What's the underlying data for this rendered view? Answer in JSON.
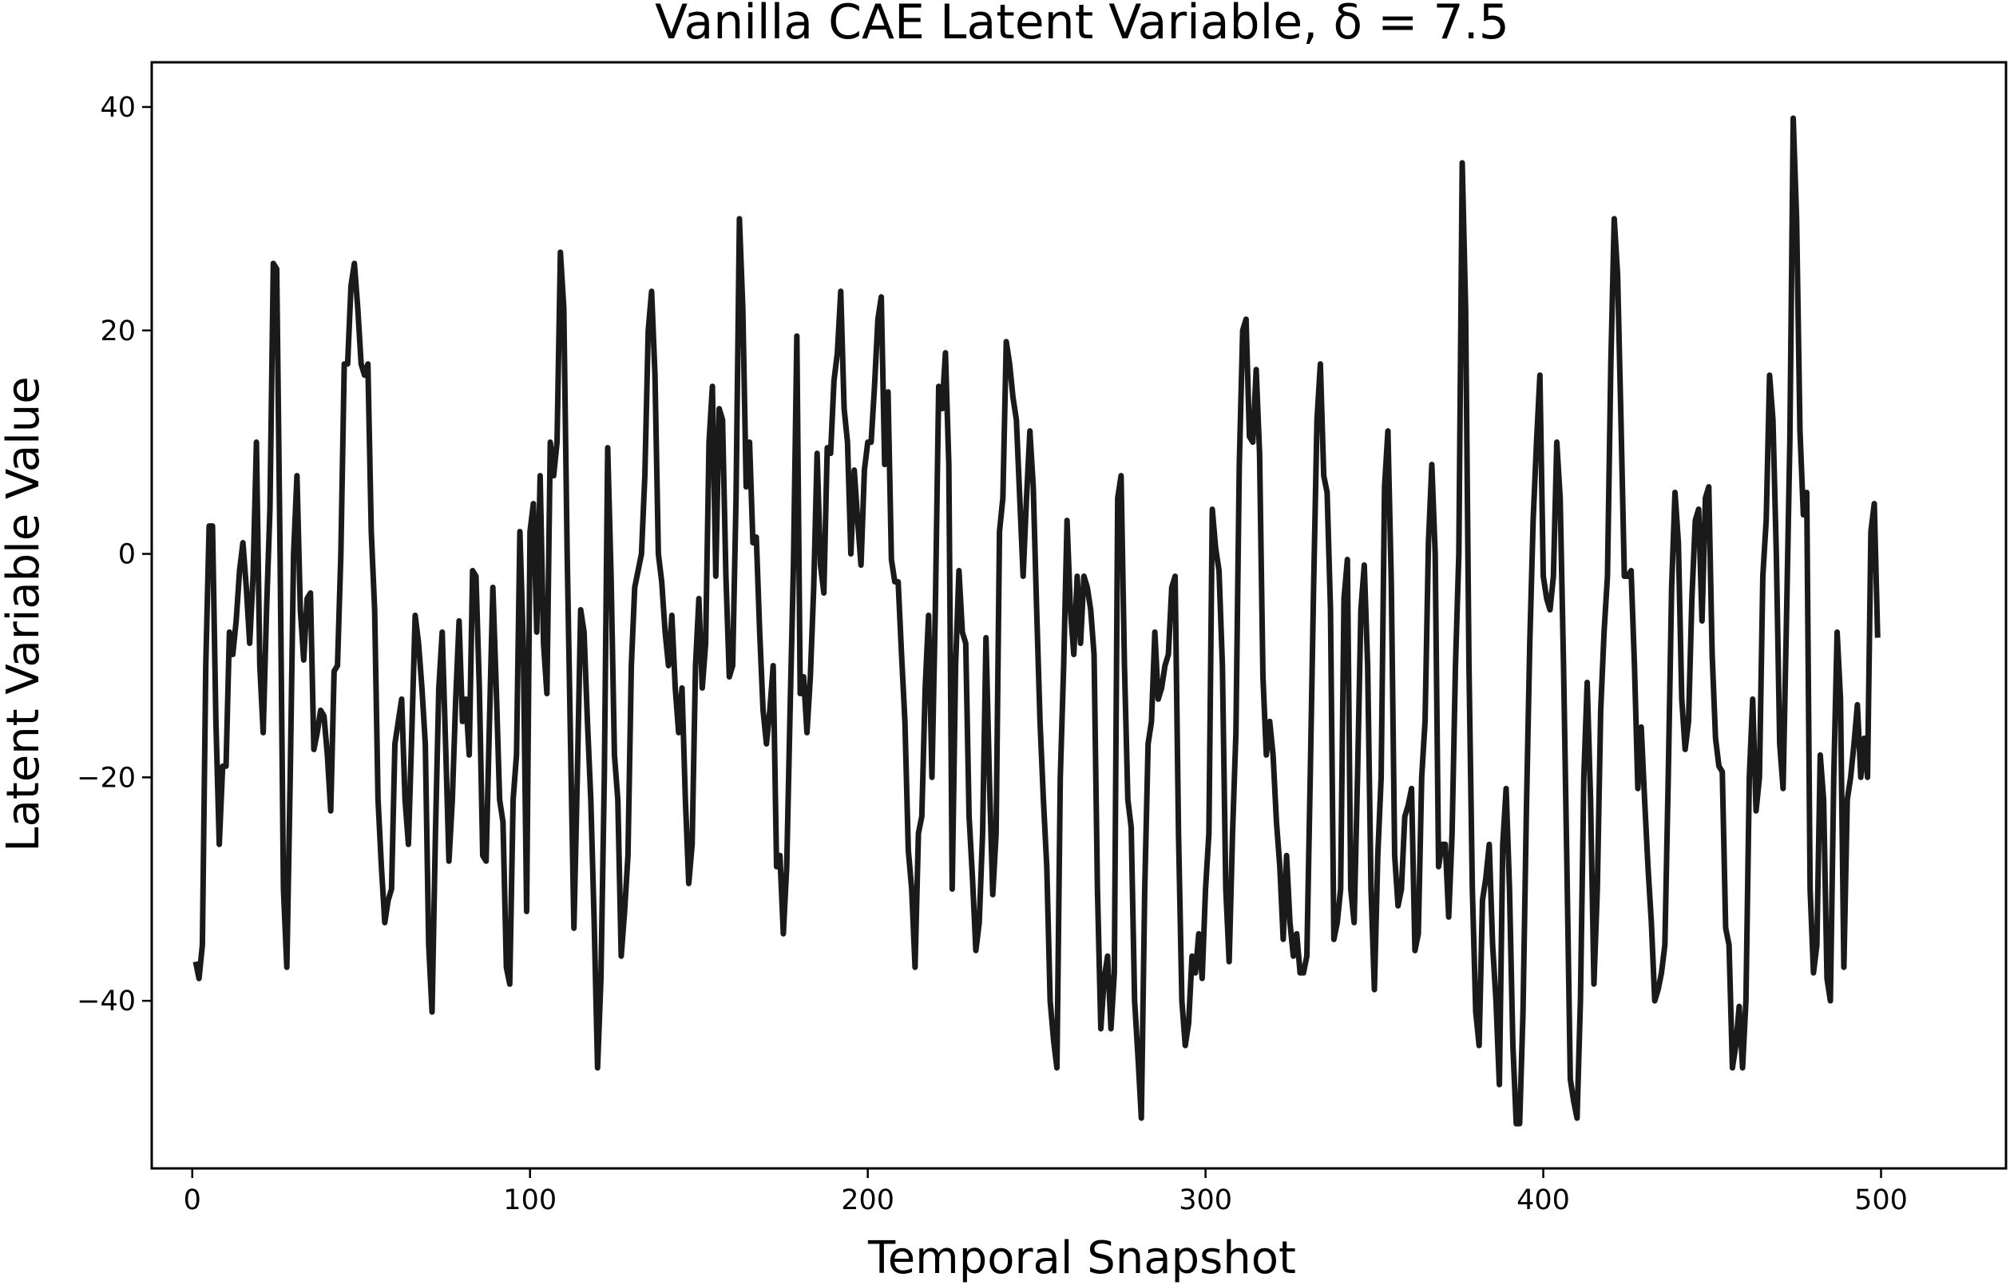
{
  "chart_data": {
    "type": "line",
    "title": "Vanilla CAE Latent Variable, δ = 7.5",
    "xlabel": "Temporal Snapshot",
    "ylabel": "Latent Variable Value",
    "xlim": [
      -12,
      537
    ],
    "ylim": [
      -55,
      44
    ],
    "x_ticks": [
      0,
      100,
      200,
      300,
      400,
      500
    ],
    "y_ticks": [
      -40,
      -20,
      0,
      20,
      40
    ],
    "x_tick_labels": [
      "0",
      "100",
      "200",
      "300",
      "400",
      "500"
    ],
    "y_tick_labels": [
      "−40",
      "−20",
      "0",
      "20",
      "40"
    ],
    "grid": false,
    "line_color": "#1a1a1a",
    "series": [
      {
        "x_start": 1,
        "x_step": 1,
        "values": [
          -36.5,
          -38,
          -35,
          -10,
          2.5,
          2.5,
          -15,
          -26,
          -19,
          -19,
          -7,
          -9,
          -6,
          -1.5,
          1,
          -3,
          -8,
          -2,
          10,
          -10,
          -16,
          -5,
          4,
          26,
          25.5,
          0,
          -30,
          -37,
          -20,
          0,
          7,
          -5,
          -9.5,
          -4,
          -3.5,
          -17.5,
          -16,
          -14,
          -14.5,
          -18,
          -23,
          -10.5,
          -10,
          0,
          17,
          17,
          24,
          26,
          22,
          17,
          16,
          17,
          2,
          -5,
          -22,
          -28,
          -33,
          -31,
          -30,
          -17,
          -15,
          -13,
          -22,
          -26,
          -16,
          -5.5,
          -8,
          -12,
          -17,
          -35,
          -41,
          -25,
          -12,
          -7,
          -17,
          -27.5,
          -22,
          -13,
          -6,
          -15,
          -13,
          -18,
          -1.5,
          -2,
          -12,
          -27,
          -27.5,
          -15,
          -3,
          -12,
          -22,
          -24,
          -37,
          -38.5,
          -22,
          -18,
          2,
          -8,
          -32,
          2,
          4.5,
          -7,
          7,
          -8,
          -12.5,
          10,
          7,
          10,
          27,
          22,
          0,
          -17,
          -33.5,
          -20,
          -5,
          -7,
          -15,
          -22,
          -33,
          -46,
          -38,
          -20,
          9.5,
          -2,
          -18,
          -22,
          -36,
          -32,
          -27,
          -10,
          -3,
          -1.5,
          0,
          7,
          20,
          23.5,
          16,
          0,
          -2.5,
          -7,
          -10,
          -5.5,
          -12,
          -16,
          -12,
          -22,
          -29.5,
          -26,
          -10,
          -4,
          -12,
          -8,
          10,
          15,
          -2,
          13,
          12,
          -2,
          -11,
          -10,
          5,
          30,
          22,
          6,
          10,
          1,
          1.5,
          -7,
          -14,
          -17,
          -14,
          -10,
          -28,
          -27,
          -34,
          -28,
          -14,
          -1,
          19.5,
          -12.5,
          -11,
          -16,
          -11,
          -3,
          9,
          -1,
          -3.5,
          9.5,
          9,
          15.5,
          18,
          23.5,
          13,
          10,
          0,
          7.5,
          3,
          -1,
          7.5,
          10,
          10,
          15,
          21,
          23,
          8,
          14.5,
          -0.5,
          -2.5,
          -2.5,
          -9,
          -15,
          -26.5,
          -30,
          -37,
          -25,
          -23.5,
          -12,
          -5.5,
          -20,
          -5,
          15,
          13,
          18,
          8,
          -30,
          -10,
          -1.5,
          -7,
          -8,
          -23.5,
          -29,
          -35.5,
          -33,
          -25,
          -7.5,
          -20,
          -30.5,
          -25,
          2,
          5,
          19,
          17,
          14,
          12,
          5,
          -2,
          5,
          11,
          6,
          -5,
          -15,
          -22,
          -28,
          -40,
          -43.5,
          -46,
          -20,
          -10,
          3,
          -5,
          -9,
          -2,
          -8,
          -2,
          -3,
          -5,
          -9,
          -30,
          -42.5,
          -38,
          -36,
          -42.5,
          -37.5,
          5,
          7,
          -10,
          -22,
          -24.5,
          -40,
          -45,
          -50.5,
          -30,
          -17,
          -15,
          -7,
          -13,
          -12,
          -10,
          -9,
          -3,
          -2,
          -25,
          -40,
          -44,
          -42,
          -36,
          -37.5,
          -34,
          -38,
          -30,
          -25,
          4,
          0.5,
          -1.5,
          -10,
          -30,
          -36.5,
          -25,
          -16,
          8,
          20,
          21,
          10.5,
          10,
          16.5,
          9,
          -11,
          -18,
          -15,
          -18,
          -24,
          -28,
          -34.5,
          -27,
          -33,
          -36,
          -34,
          -37.5,
          -37.5,
          -36,
          -20,
          -3,
          12,
          17,
          7,
          5.5,
          -5,
          -34.5,
          -33,
          -30,
          -4,
          -0.5,
          -30,
          -33,
          -20,
          -5,
          -1,
          -10,
          -30,
          -39,
          -27,
          -20,
          6,
          11,
          -2.5,
          -27,
          -31.5,
          -30,
          -23.5,
          -22.5,
          -21,
          -35.5,
          -34,
          -20,
          -15,
          1,
          8,
          0,
          -28,
          -26,
          -26,
          -32.5,
          -25,
          -10,
          0,
          35,
          22,
          -10,
          -30,
          -41,
          -44,
          -31,
          -29,
          -26,
          -35,
          -40,
          -47.5,
          -26,
          -21,
          -30,
          -44,
          -51,
          -51,
          -41,
          -23,
          -8,
          3,
          10,
          16,
          -2,
          -4,
          -5,
          -2,
          10,
          5,
          -10,
          -28,
          -47,
          -49,
          -50.5,
          -40,
          -20,
          -11.5,
          -22,
          -38.5,
          -30,
          -14,
          -7,
          -2,
          17,
          30,
          25,
          12,
          -2,
          -2,
          -1.5,
          -10,
          -21,
          -15.5,
          -22,
          -28,
          -33,
          -40,
          -39,
          -37.5,
          -35,
          -20,
          -3,
          5.5,
          1,
          -13,
          -17.5,
          -15,
          -4,
          3,
          4,
          -6,
          5,
          6,
          -9,
          -16.5,
          -19,
          -19.5,
          -33.5,
          -35,
          -46,
          -44,
          -40.5,
          -46,
          -40,
          -20,
          -13,
          -23,
          -20,
          -2,
          3,
          16,
          12,
          0,
          -17,
          -21,
          -6,
          10,
          39,
          30,
          11,
          3.5,
          5.5,
          -30,
          -37.5,
          -35,
          -18,
          -22,
          -38,
          -40,
          -20,
          -7,
          -13,
          -37,
          -22,
          -20,
          -17,
          -13.5,
          -20,
          -16.5,
          -20,
          2,
          4.5,
          -7.5
        ]
      }
    ]
  }
}
